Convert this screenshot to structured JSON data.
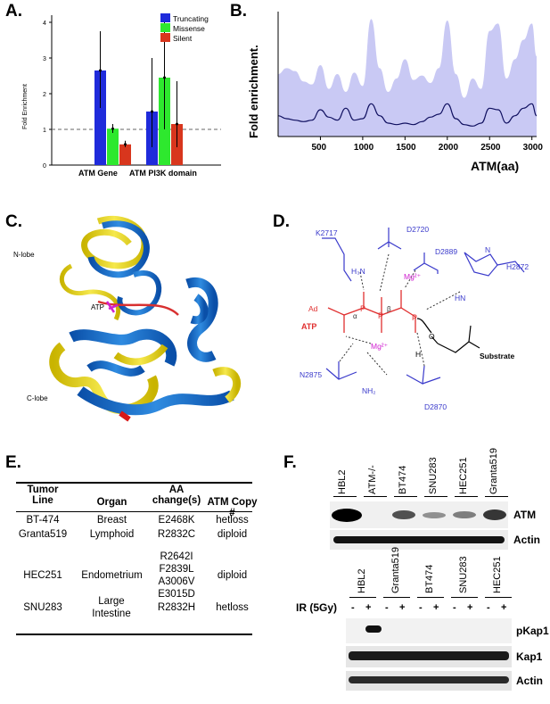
{
  "panels": {
    "A": "A.",
    "B": "B.",
    "C": "C.",
    "D": "D.",
    "E": "E.",
    "F": "F."
  },
  "chart_a": {
    "legend": [
      "Truncating",
      "Missense",
      "Silent"
    ],
    "colors": {
      "Truncating": "#1f2bdb",
      "Missense": "#2ee82e",
      "Silent": "#d8361d"
    },
    "ylabel": "Fold Enrichment",
    "yticks": [
      "0",
      "1",
      "2",
      "3",
      "4"
    ],
    "categories": [
      "ATM Gene",
      "ATM PI3K domain"
    ]
  },
  "chart_b": {
    "ylabel": "Fold enrichment.",
    "xlabel": "ATM(aa)",
    "xticks": [
      "500",
      "1000",
      "1500",
      "2000",
      "2500",
      "3000"
    ]
  },
  "chart_data": [
    {
      "type": "bar",
      "categories": [
        "ATM Gene",
        "ATM PI3K domain"
      ],
      "series": [
        {
          "name": "Truncating",
          "values": [
            2.65,
            1.5
          ],
          "err_low": [
            1.6,
            0.5
          ],
          "err_high": [
            3.75,
            3.0
          ]
        },
        {
          "name": "Missense",
          "values": [
            1.02,
            2.45
          ],
          "err_low": [
            0.9,
            1.0
          ],
          "err_high": [
            1.15,
            4.2
          ]
        },
        {
          "name": "Silent",
          "values": [
            0.58,
            1.15
          ],
          "err_low": [
            0.5,
            0.5
          ],
          "err_high": [
            0.68,
            2.35
          ]
        }
      ],
      "ylabel": "Fold Enrichment",
      "ylim": [
        0,
        4.2
      ],
      "reference_line": 1
    },
    {
      "type": "area",
      "x": [
        0,
        100,
        200,
        300,
        400,
        500,
        600,
        700,
        800,
        900,
        1000,
        1100,
        1200,
        1300,
        1400,
        1500,
        1600,
        1700,
        1800,
        1900,
        2000,
        2100,
        2200,
        2300,
        2400,
        2500,
        2600,
        2700,
        2800,
        2900,
        3000,
        3056
      ],
      "series": [
        {
          "values": [
            70,
            60,
            55,
            50,
            55,
            90,
            65,
            55,
            95,
            55,
            60,
            110,
            70,
            45,
            40,
            45,
            40,
            50,
            65,
            75,
            110,
            60,
            40,
            35,
            45,
            95,
            90,
            45,
            70,
            95,
            110,
            70
          ]
        },
        {
          "values": [
            210,
            230,
            220,
            185,
            175,
            240,
            160,
            210,
            150,
            215,
            170,
            395,
            230,
            150,
            195,
            260,
            190,
            205,
            180,
            230,
            390,
            210,
            130,
            195,
            160,
            355,
            380,
            195,
            260,
            325,
            380,
            270
          ]
        }
      ],
      "xlabel": "ATM(aa)",
      "ylabel": "Fold enrichment.",
      "xlim": [
        0,
        3056
      ]
    }
  ],
  "structure": {
    "nlobe": "N-lobe",
    "atp": "ATP",
    "clobe": "C-lobe"
  },
  "mechanism": {
    "k2717": "K2717",
    "d2720": "D2720",
    "d2889": "D2889",
    "h2872": "H2872",
    "n2875": "N2875",
    "d2870": "D2870",
    "ad": "Ad",
    "atp": "ATP",
    "substrate": "Substrate",
    "mg": "Mg²⁺",
    "h3n": "H₃N",
    "nh2": "NH₂",
    "hn": "HN",
    "n": "N",
    "h": "H",
    "alpha": "α",
    "beta": "β",
    "gamma": "γ",
    "o": "O",
    "p": "P",
    "ominus": "O⁻"
  },
  "table": {
    "headers": {
      "line": "Tumor Line",
      "organ": "Organ",
      "aa": "AA change(s)",
      "copy": "ATM Copy #"
    },
    "rows": [
      {
        "line": "BT-474",
        "organ": "Breast",
        "aa": "E2468K",
        "copy": "hetloss"
      },
      {
        "line": "Granta519",
        "organ": "Lymphoid",
        "aa": "R2832C",
        "copy": "diploid"
      },
      {
        "line": "HEC251",
        "organ": "Endometrium",
        "aa": "R2642I\nF2839L\nA3006V\nE3015D",
        "copy": "diploid"
      },
      {
        "line": "SNU283",
        "organ": "Large Intestine",
        "aa": "R2832H",
        "copy": "hetloss"
      }
    ]
  },
  "blot_top": {
    "lanes": [
      "HBL2",
      "ATM-/-",
      "BT474",
      "SNU283",
      "HEC251",
      "Granta519"
    ],
    "bands": [
      "ATM",
      "Actin"
    ],
    "atm_intensity": [
      1.0,
      0.0,
      0.55,
      0.2,
      0.3,
      0.7
    ]
  },
  "blot_bottom": {
    "lanes": [
      "HBL2",
      "Granta519",
      "BT474",
      "SNU283",
      "HEC251"
    ],
    "ir_label": "IR (5Gy)",
    "minus": "-",
    "plus": "+",
    "bands": [
      "pKap1",
      "Kap1",
      "Actin"
    ]
  }
}
